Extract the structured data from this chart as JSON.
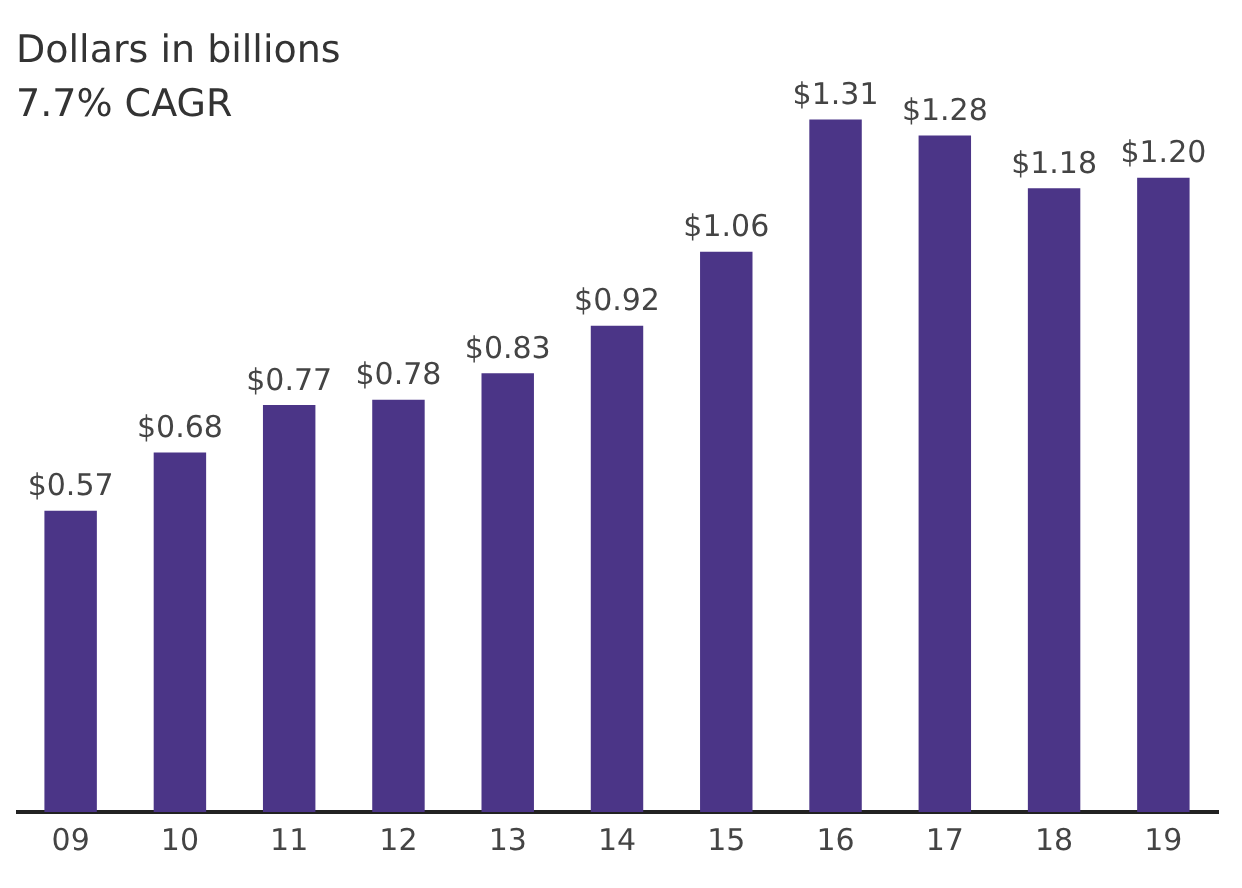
{
  "chart_data": {
    "type": "bar",
    "title": "Dollars in billions",
    "subtitle": "7.7% CAGR",
    "categories": [
      "09",
      "10",
      "11",
      "12",
      "13",
      "14",
      "15",
      "16",
      "17",
      "18",
      "19"
    ],
    "values": [
      0.57,
      0.68,
      0.77,
      0.78,
      0.83,
      0.92,
      1.06,
      1.31,
      1.28,
      1.18,
      1.2
    ],
    "value_labels": [
      "$0.57",
      "$0.68",
      "$0.77",
      "$0.78",
      "$0.83",
      "$0.92",
      "$1.06",
      "$1.31",
      "$1.28",
      "$1.18",
      "$1.20"
    ],
    "color": "#4b3587",
    "grid": false,
    "legend": false
  }
}
